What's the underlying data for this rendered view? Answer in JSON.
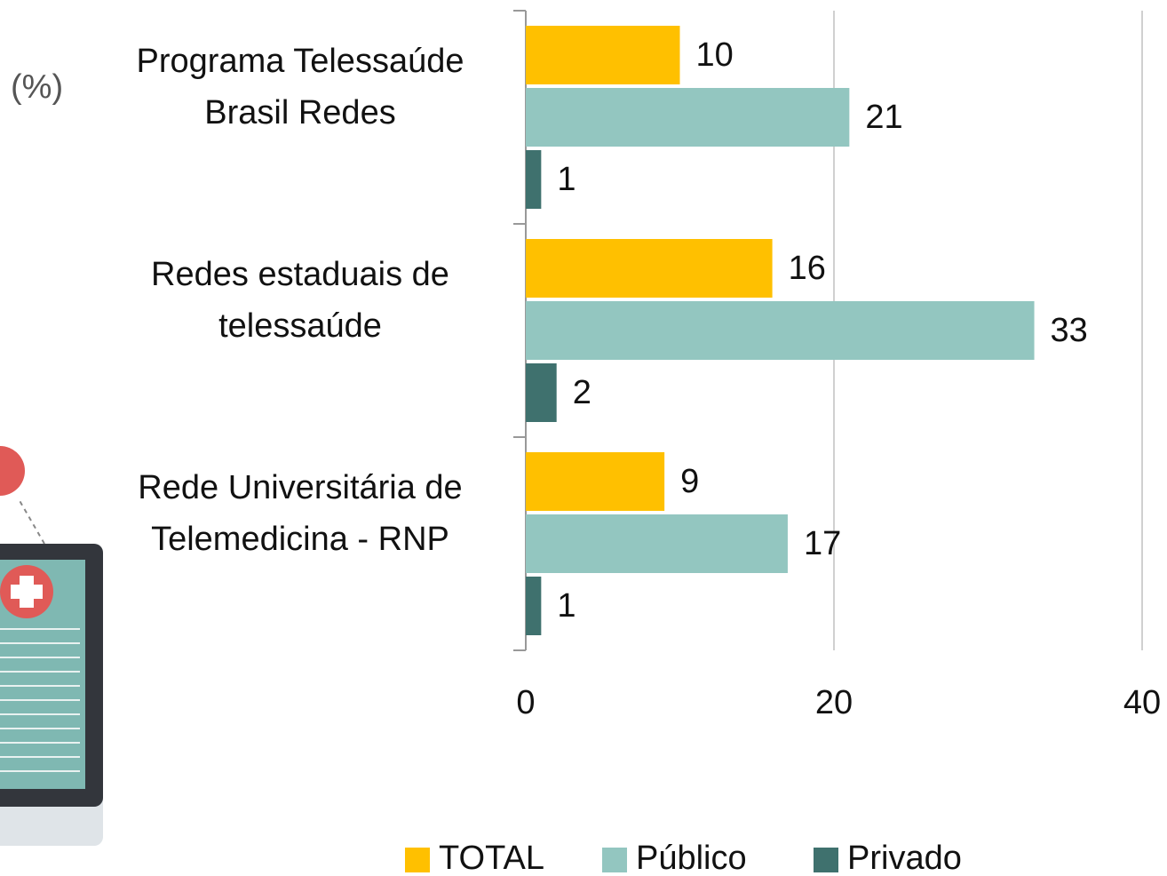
{
  "chart_data": {
    "type": "hbar",
    "unit_label": "(%)",
    "categories": [
      "Programa Telessaúde\nBrasil Redes",
      "Redes estaduais de\ntelessaúde",
      "Rede Universitária de\nTelemedicina - RNP"
    ],
    "series": [
      {
        "name": "TOTAL",
        "color": "#FFC000",
        "values": [
          10,
          16,
          9
        ]
      },
      {
        "name": "Público",
        "color": "#93C6C0",
        "values": [
          21,
          33,
          17
        ]
      },
      {
        "name": "Privado",
        "color": "#3F716E",
        "values": [
          1,
          2,
          1
        ]
      }
    ],
    "xlim": [
      0,
      40
    ],
    "xticks": [
      0,
      20,
      40
    ],
    "grid": true
  }
}
